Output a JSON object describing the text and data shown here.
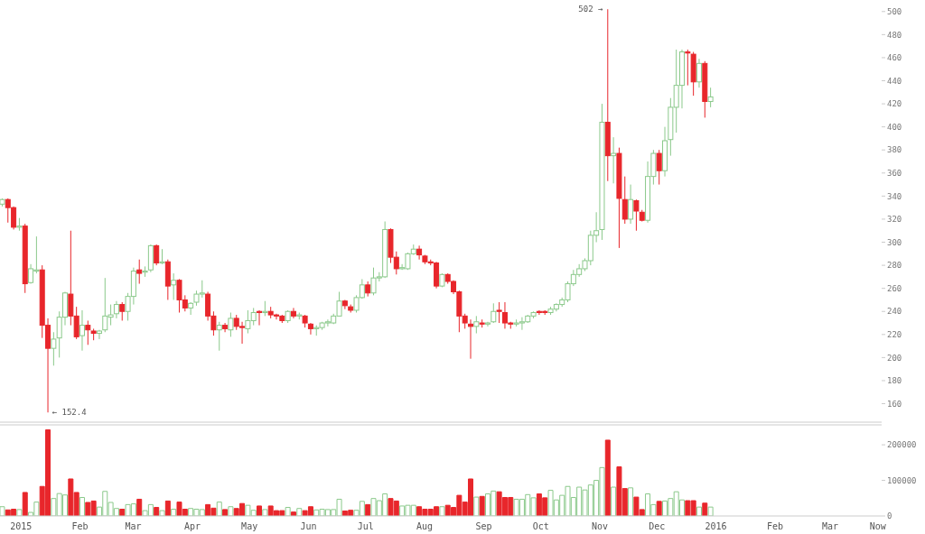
{
  "chart_data": [
    {
      "type": "candlestick",
      "x": [
        "2014-12-22",
        "2014-12-25",
        "2014-12-28",
        "2014-12-31",
        "2015-01-03",
        "2015-01-06",
        "2015-01-09",
        "2015-01-12",
        "2015-01-15",
        "2015-01-18",
        "2015-01-21",
        "2015-01-24",
        "2015-01-27",
        "2015-01-30",
        "2015-02-02",
        "2015-02-05",
        "2015-02-08",
        "2015-02-11",
        "2015-02-14",
        "2015-02-17",
        "2015-02-20",
        "2015-02-23",
        "2015-02-26",
        "2015-03-01",
        "2015-03-04",
        "2015-03-07",
        "2015-03-10",
        "2015-03-13",
        "2015-03-16",
        "2015-03-19",
        "2015-03-22",
        "2015-03-25",
        "2015-03-28",
        "2015-03-31",
        "2015-04-03",
        "2015-04-06",
        "2015-04-09",
        "2015-04-12",
        "2015-04-15",
        "2015-04-18",
        "2015-04-21",
        "2015-04-24",
        "2015-04-27",
        "2015-04-30",
        "2015-05-03",
        "2015-05-06",
        "2015-05-09",
        "2015-05-12",
        "2015-05-15",
        "2015-05-18",
        "2015-05-21",
        "2015-05-24",
        "2015-05-27",
        "2015-05-30",
        "2015-06-02",
        "2015-06-05",
        "2015-06-08",
        "2015-06-11",
        "2015-06-14",
        "2015-06-17",
        "2015-06-20",
        "2015-06-23",
        "2015-06-26",
        "2015-06-29",
        "2015-07-02",
        "2015-07-05",
        "2015-07-08",
        "2015-07-11",
        "2015-07-14",
        "2015-07-17",
        "2015-07-20",
        "2015-07-23",
        "2015-07-26",
        "2015-07-29",
        "2015-08-01",
        "2015-08-04",
        "2015-08-07",
        "2015-08-10",
        "2015-08-13",
        "2015-08-16",
        "2015-08-19",
        "2015-08-22",
        "2015-08-25",
        "2015-08-28",
        "2015-08-31",
        "2015-09-03",
        "2015-09-06",
        "2015-09-09",
        "2015-09-12",
        "2015-09-15",
        "2015-09-18",
        "2015-09-21",
        "2015-09-24",
        "2015-09-27",
        "2015-09-30",
        "2015-10-03",
        "2015-10-06",
        "2015-10-09",
        "2015-10-12",
        "2015-10-15",
        "2015-10-18",
        "2015-10-21",
        "2015-10-24",
        "2015-10-27",
        "2015-10-30",
        "2015-11-02",
        "2015-11-05",
        "2015-11-08",
        "2015-11-11",
        "2015-11-14",
        "2015-11-17",
        "2015-11-20",
        "2015-11-23",
        "2015-11-26",
        "2015-11-29",
        "2015-12-02",
        "2015-12-05",
        "2015-12-08",
        "2015-12-11",
        "2015-12-14",
        "2015-12-17",
        "2015-12-20",
        "2015-12-23",
        "2015-12-26",
        "2015-12-29"
      ],
      "ohlc": [
        [
          333,
          338,
          331,
          337
        ],
        [
          337,
          338,
          317,
          330
        ],
        [
          330,
          331,
          311,
          313
        ],
        [
          313,
          321,
          310,
          314
        ],
        [
          314,
          316,
          256,
          264
        ],
        [
          265,
          281,
          264,
          277
        ],
        [
          275,
          305,
          273,
          276
        ],
        [
          276,
          280,
          217,
          228
        ],
        [
          228,
          234,
          152.4,
          208
        ],
        [
          208,
          222,
          193,
          216
        ],
        [
          217,
          240,
          200,
          235
        ],
        [
          235,
          257,
          228,
          256
        ],
        [
          255,
          310,
          228,
          236
        ],
        [
          236,
          244,
          216,
          218
        ],
        [
          219,
          241,
          206,
          228
        ],
        [
          228,
          232,
          211,
          224
        ],
        [
          223,
          225,
          215,
          221
        ],
        [
          221,
          224,
          216,
          223
        ],
        [
          224,
          269,
          222,
          236
        ],
        [
          235,
          246,
          228,
          237
        ],
        [
          238,
          249,
          234,
          246
        ],
        [
          246,
          248,
          232,
          240
        ],
        [
          240,
          256,
          232,
          253
        ],
        [
          253,
          278,
          246,
          275
        ],
        [
          276,
          285,
          264,
          273
        ],
        [
          274,
          279,
          270,
          275
        ],
        [
          276,
          298,
          274,
          297
        ],
        [
          297,
          298,
          280,
          282
        ],
        [
          282,
          294,
          281,
          283
        ],
        [
          283,
          285,
          250,
          262
        ],
        [
          263,
          273,
          250,
          267
        ],
        [
          267,
          268,
          239,
          250
        ],
        [
          250,
          254,
          240,
          243
        ],
        [
          243,
          248,
          237,
          247
        ],
        [
          248,
          258,
          245,
          255
        ],
        [
          255,
          267,
          252,
          256
        ],
        [
          255,
          257,
          232,
          236
        ],
        [
          236,
          240,
          219,
          224
        ],
        [
          224,
          231,
          206,
          228
        ],
        [
          228,
          230,
          222,
          225
        ],
        [
          224,
          239,
          218,
          234
        ],
        [
          234,
          237,
          224,
          227
        ],
        [
          227,
          231,
          212,
          226
        ],
        [
          225,
          241,
          221,
          232
        ],
        [
          232,
          243,
          228,
          239
        ],
        [
          240,
          241,
          228,
          239
        ],
        [
          239,
          249,
          236,
          240
        ],
        [
          240,
          244,
          234,
          237
        ],
        [
          237,
          238,
          233,
          236
        ],
        [
          236,
          237,
          230,
          232
        ],
        [
          232,
          241,
          230,
          240
        ],
        [
          240,
          243,
          234,
          236
        ],
        [
          236,
          239,
          233,
          237
        ],
        [
          236,
          237,
          226,
          230
        ],
        [
          229,
          230,
          220,
          225
        ],
        [
          225,
          228,
          219,
          226
        ],
        [
          226,
          231,
          224,
          230
        ],
        [
          230,
          233,
          227,
          231
        ],
        [
          230,
          238,
          229,
          236
        ],
        [
          236,
          257,
          236,
          249
        ],
        [
          249,
          250,
          242,
          245
        ],
        [
          244,
          246,
          239,
          241
        ],
        [
          241,
          254,
          239,
          252
        ],
        [
          252,
          268,
          251,
          263
        ],
        [
          263,
          266,
          253,
          256
        ],
        [
          256,
          278,
          254,
          269
        ],
        [
          269,
          274,
          266,
          270
        ],
        [
          270,
          318,
          269,
          311
        ],
        [
          311,
          312,
          282,
          287
        ],
        [
          287,
          292,
          272,
          277
        ],
        [
          277,
          281,
          276,
          278
        ],
        [
          277,
          291,
          276,
          290
        ],
        [
          290,
          298,
          289,
          294
        ],
        [
          294,
          297,
          285,
          289
        ],
        [
          288,
          289,
          281,
          283
        ],
        [
          283,
          285,
          280,
          282
        ],
        [
          282,
          283,
          260,
          262
        ],
        [
          262,
          273,
          261,
          272
        ],
        [
          272,
          273,
          264,
          266
        ],
        [
          266,
          267,
          255,
          257
        ],
        [
          257,
          258,
          222,
          236
        ],
        [
          236,
          238,
          225,
          230
        ],
        [
          229,
          233,
          199,
          227
        ],
        [
          227,
          236,
          221,
          231
        ],
        [
          230,
          233,
          226,
          229
        ],
        [
          229,
          231,
          227,
          230
        ],
        [
          231,
          247,
          230,
          240
        ],
        [
          241,
          248,
          230,
          240
        ],
        [
          239,
          248,
          225,
          230
        ],
        [
          230,
          231,
          225,
          229
        ],
        [
          229,
          233,
          227,
          230
        ],
        [
          230,
          235,
          224,
          231
        ],
        [
          231,
          237,
          230,
          236
        ],
        [
          236,
          240,
          234,
          239
        ],
        [
          240,
          241,
          237,
          239
        ],
        [
          240,
          241,
          237,
          239
        ],
        [
          239,
          244,
          237,
          242
        ],
        [
          242,
          247,
          240,
          246
        ],
        [
          246,
          252,
          244,
          250
        ],
        [
          250,
          266,
          248,
          264
        ],
        [
          264,
          276,
          262,
          272
        ],
        [
          272,
          281,
          270,
          277
        ],
        [
          277,
          286,
          275,
          284
        ],
        [
          284,
          310,
          280,
          306
        ],
        [
          306,
          326,
          300,
          310
        ],
        [
          311,
          420,
          302,
          404
        ],
        [
          404,
          502,
          353,
          375
        ],
        [
          375,
          391,
          351,
          377
        ],
        [
          377,
          382,
          295,
          338
        ],
        [
          337,
          357,
          316,
          320
        ],
        [
          320,
          350,
          316,
          337
        ],
        [
          336,
          337,
          310,
          327
        ],
        [
          326,
          328,
          318,
          319
        ],
        [
          319,
          370,
          317,
          357
        ],
        [
          357,
          380,
          350,
          377
        ],
        [
          377,
          380,
          350,
          362
        ],
        [
          362,
          400,
          357,
          388
        ],
        [
          389,
          425,
          375,
          417
        ],
        [
          417,
          467,
          395,
          436
        ],
        [
          436,
          467,
          416,
          465
        ],
        [
          465,
          467,
          436,
          464
        ],
        [
          463,
          465,
          427,
          439
        ],
        [
          439,
          459,
          434,
          455
        ],
        [
          455,
          457,
          408,
          422
        ],
        [
          422,
          434,
          417,
          426
        ]
      ],
      "colors": [
        "#8bc98b",
        "#e8262b",
        "#e8262b",
        "#8bc98b",
        "#e8262b",
        "#8bc98b",
        "#8bc98b",
        "#e8262b",
        "#e8262b",
        "#8bc98b",
        "#8bc98b",
        "#8bc98b",
        "#e8262b",
        "#e8262b",
        "#8bc98b",
        "#e8262b",
        "#e8262b",
        "#8bc98b",
        "#8bc98b",
        "#8bc98b",
        "#8bc98b",
        "#e8262b",
        "#8bc98b",
        "#8bc98b",
        "#e8262b",
        "#8bc98b",
        "#8bc98b",
        "#e8262b",
        "#8bc98b",
        "#e8262b",
        "#8bc98b",
        "#e8262b",
        "#e8262b",
        "#8bc98b",
        "#8bc98b",
        "#8bc98b",
        "#e8262b",
        "#e8262b",
        "#8bc98b",
        "#e8262b",
        "#8bc98b",
        "#e8262b",
        "#e8262b",
        "#8bc98b",
        "#8bc98b",
        "#e8262b",
        "#8bc98b",
        "#e8262b",
        "#e8262b",
        "#e8262b",
        "#8bc98b",
        "#e8262b",
        "#8bc98b",
        "#e8262b",
        "#e8262b",
        "#8bc98b",
        "#8bc98b",
        "#8bc98b",
        "#8bc98b",
        "#8bc98b",
        "#e8262b",
        "#e8262b",
        "#8bc98b",
        "#8bc98b",
        "#e8262b",
        "#8bc98b",
        "#8bc98b",
        "#8bc98b",
        "#e8262b",
        "#e8262b",
        "#8bc98b",
        "#8bc98b",
        "#8bc98b",
        "#e8262b",
        "#e8262b",
        "#e8262b",
        "#e8262b",
        "#8bc98b",
        "#e8262b",
        "#e8262b",
        "#e8262b",
        "#e8262b",
        "#e8262b",
        "#8bc98b",
        "#e8262b",
        "#8bc98b",
        "#8bc98b",
        "#e8262b",
        "#e8262b",
        "#e8262b",
        "#8bc98b",
        "#8bc98b",
        "#8bc98b",
        "#8bc98b",
        "#e8262b",
        "#e8262b",
        "#8bc98b",
        "#8bc98b",
        "#8bc98b",
        "#8bc98b",
        "#8bc98b",
        "#8bc98b",
        "#8bc98b",
        "#8bc98b",
        "#8bc98b",
        "#8bc98b",
        "#e8262b",
        "#8bc98b",
        "#e8262b",
        "#e8262b",
        "#8bc98b",
        "#e8262b",
        "#e8262b",
        "#8bc98b",
        "#8bc98b",
        "#e8262b",
        "#8bc98b",
        "#8bc98b",
        "#8bc98b",
        "#8bc98b",
        "#e8262b",
        "#e8262b",
        "#8bc98b",
        "#e8262b",
        "#8bc98b"
      ],
      "xlim": [
        "2014-12-21",
        "2016-03-28"
      ],
      "ylim": [
        144,
        510
      ],
      "yticks": [
        160,
        180,
        200,
        220,
        240,
        260,
        280,
        300,
        320,
        340,
        360,
        380,
        400,
        420,
        440,
        460,
        480,
        500
      ],
      "tick_labels": "y",
      "annotations": [
        {
          "text": "502 →",
          "x": "2015-11-05",
          "y": 502
        },
        {
          "text": "← 152.4",
          "x": "2015-01-15",
          "y": 152.4
        }
      ]
    },
    {
      "type": "bar",
      "x": [
        "2014-12-22",
        "2014-12-25",
        "2014-12-28",
        "2014-12-31",
        "2015-01-03",
        "2015-01-06",
        "2015-01-09",
        "2015-01-12",
        "2015-01-15",
        "2015-01-18",
        "2015-01-21",
        "2015-01-24",
        "2015-01-27",
        "2015-01-30",
        "2015-02-02",
        "2015-02-05",
        "2015-02-08",
        "2015-02-11",
        "2015-02-14",
        "2015-02-17",
        "2015-02-20",
        "2015-02-23",
        "2015-02-26",
        "2015-03-01",
        "2015-03-04",
        "2015-03-07",
        "2015-03-10",
        "2015-03-13",
        "2015-03-16",
        "2015-03-19",
        "2015-03-22",
        "2015-03-25",
        "2015-03-28",
        "2015-03-31",
        "2015-04-03",
        "2015-04-06",
        "2015-04-09",
        "2015-04-12",
        "2015-04-15",
        "2015-04-18",
        "2015-04-21",
        "2015-04-24",
        "2015-04-27",
        "2015-04-30",
        "2015-05-03",
        "2015-05-06",
        "2015-05-09",
        "2015-05-12",
        "2015-05-15",
        "2015-05-18",
        "2015-05-21",
        "2015-05-24",
        "2015-05-27",
        "2015-05-30",
        "2015-06-02",
        "2015-06-05",
        "2015-06-08",
        "2015-06-11",
        "2015-06-14",
        "2015-06-17",
        "2015-06-20",
        "2015-06-23",
        "2015-06-26",
        "2015-06-29",
        "2015-07-02",
        "2015-07-05",
        "2015-07-08",
        "2015-07-11",
        "2015-07-14",
        "2015-07-17",
        "2015-07-20",
        "2015-07-23",
        "2015-07-26",
        "2015-07-29",
        "2015-08-01",
        "2015-08-04",
        "2015-08-07",
        "2015-08-10",
        "2015-08-13",
        "2015-08-16",
        "2015-08-19",
        "2015-08-22",
        "2015-08-25",
        "2015-08-28",
        "2015-08-31",
        "2015-09-03",
        "2015-09-06",
        "2015-09-09",
        "2015-09-12",
        "2015-09-15",
        "2015-09-18",
        "2015-09-21",
        "2015-09-24",
        "2015-09-27",
        "2015-09-30",
        "2015-10-03",
        "2015-10-06",
        "2015-10-09",
        "2015-10-12",
        "2015-10-15",
        "2015-10-18",
        "2015-10-21",
        "2015-10-24",
        "2015-10-27",
        "2015-10-30",
        "2015-11-02",
        "2015-11-05",
        "2015-11-08",
        "2015-11-11",
        "2015-11-14",
        "2015-11-17",
        "2015-11-20",
        "2015-11-23",
        "2015-11-26",
        "2015-11-29",
        "2015-12-02",
        "2015-12-05",
        "2015-12-08",
        "2015-12-11",
        "2015-12-14",
        "2015-12-17",
        "2015-12-20",
        "2015-12-23",
        "2015-12-26",
        "2015-12-29"
      ],
      "values": [
        26000,
        17000,
        19000,
        18000,
        66000,
        10000,
        39000,
        83000,
        242000,
        49000,
        63000,
        59000,
        104000,
        66000,
        52000,
        38000,
        42000,
        25000,
        69000,
        38000,
        21000,
        19000,
        32000,
        34000,
        47000,
        15000,
        32000,
        24000,
        15000,
        42000,
        19000,
        39000,
        19000,
        21000,
        19000,
        18000,
        32000,
        22000,
        39000,
        18000,
        26000,
        21000,
        35000,
        30000,
        16000,
        28000,
        18000,
        28000,
        15000,
        15000,
        24000,
        11000,
        21000,
        15000,
        26000,
        17000,
        19000,
        18000,
        18000,
        47000,
        14000,
        16000,
        16000,
        41000,
        32000,
        49000,
        43000,
        62000,
        49000,
        42000,
        28000,
        30000,
        30000,
        26000,
        19000,
        19000,
        26000,
        26000,
        30000,
        24000,
        58000,
        39000,
        104000,
        53000,
        55000,
        62000,
        70000,
        68000,
        52000,
        52000,
        47000,
        47000,
        60000,
        51000,
        62000,
        51000,
        72000,
        45000,
        58000,
        83000,
        52000,
        81000,
        73000,
        87000,
        100000,
        136000,
        213000,
        81000,
        138000,
        77000,
        79000,
        53000,
        18000,
        62000,
        32000,
        41000,
        42000,
        49000,
        68000,
        45000,
        43000,
        43000,
        25000,
        36000,
        25000
      ],
      "colors": [
        "#8bc98b",
        "#e8262b",
        "#e8262b",
        "#8bc98b",
        "#e8262b",
        "#8bc98b",
        "#8bc98b",
        "#e8262b",
        "#e8262b",
        "#8bc98b",
        "#8bc98b",
        "#8bc98b",
        "#e8262b",
        "#e8262b",
        "#8bc98b",
        "#e8262b",
        "#e8262b",
        "#8bc98b",
        "#8bc98b",
        "#8bc98b",
        "#8bc98b",
        "#e8262b",
        "#8bc98b",
        "#8bc98b",
        "#e8262b",
        "#8bc98b",
        "#8bc98b",
        "#e8262b",
        "#8bc98b",
        "#e8262b",
        "#8bc98b",
        "#e8262b",
        "#e8262b",
        "#8bc98b",
        "#8bc98b",
        "#8bc98b",
        "#e8262b",
        "#e8262b",
        "#8bc98b",
        "#e8262b",
        "#8bc98b",
        "#e8262b",
        "#e8262b",
        "#8bc98b",
        "#8bc98b",
        "#e8262b",
        "#8bc98b",
        "#e8262b",
        "#e8262b",
        "#e8262b",
        "#8bc98b",
        "#e8262b",
        "#8bc98b",
        "#e8262b",
        "#e8262b",
        "#8bc98b",
        "#8bc98b",
        "#8bc98b",
        "#8bc98b",
        "#8bc98b",
        "#e8262b",
        "#e8262b",
        "#8bc98b",
        "#8bc98b",
        "#e8262b",
        "#8bc98b",
        "#8bc98b",
        "#8bc98b",
        "#e8262b",
        "#e8262b",
        "#8bc98b",
        "#8bc98b",
        "#8bc98b",
        "#e8262b",
        "#e8262b",
        "#e8262b",
        "#e8262b",
        "#8bc98b",
        "#e8262b",
        "#e8262b",
        "#e8262b",
        "#e8262b",
        "#e8262b",
        "#8bc98b",
        "#e8262b",
        "#8bc98b",
        "#8bc98b",
        "#e8262b",
        "#e8262b",
        "#e8262b",
        "#8bc98b",
        "#8bc98b",
        "#8bc98b",
        "#8bc98b",
        "#e8262b",
        "#e8262b",
        "#8bc98b",
        "#8bc98b",
        "#8bc98b",
        "#8bc98b",
        "#8bc98b",
        "#8bc98b",
        "#8bc98b",
        "#8bc98b",
        "#8bc98b",
        "#8bc98b",
        "#e8262b",
        "#8bc98b",
        "#e8262b",
        "#e8262b",
        "#8bc98b",
        "#e8262b",
        "#e8262b",
        "#8bc98b",
        "#8bc98b",
        "#e8262b",
        "#8bc98b",
        "#8bc98b",
        "#8bc98b",
        "#8bc98b",
        "#e8262b",
        "#e8262b",
        "#8bc98b",
        "#e8262b",
        "#8bc98b"
      ],
      "xlim": [
        "2014-12-21",
        "2016-03-28"
      ],
      "xticks": [
        {
          "value": "2015-01-01",
          "label": "2015"
        },
        {
          "value": "2015-02-01",
          "label": "Feb"
        },
        {
          "value": "2015-03-01",
          "label": "Mar"
        },
        {
          "value": "2015-04-01",
          "label": "Apr"
        },
        {
          "value": "2015-05-01",
          "label": "May"
        },
        {
          "value": "2015-06-01",
          "label": "Jun"
        },
        {
          "value": "2015-07-01",
          "label": "Jul"
        },
        {
          "value": "2015-08-01",
          "label": "Aug"
        },
        {
          "value": "2015-09-01",
          "label": "Sep"
        },
        {
          "value": "2015-10-01",
          "label": "Oct"
        },
        {
          "value": "2015-11-01",
          "label": "Nov"
        },
        {
          "value": "2015-12-01",
          "label": "Dec"
        },
        {
          "value": "2016-01-01",
          "label": "2016"
        },
        {
          "value": "2016-02-01",
          "label": "Feb"
        },
        {
          "value": "2016-03-01",
          "label": "Mar"
        },
        {
          "value": "2016-03-26",
          "label": "Now"
        }
      ],
      "ylim": [
        0,
        256000
      ],
      "yticks": [
        0,
        100000,
        200000
      ]
    }
  ]
}
